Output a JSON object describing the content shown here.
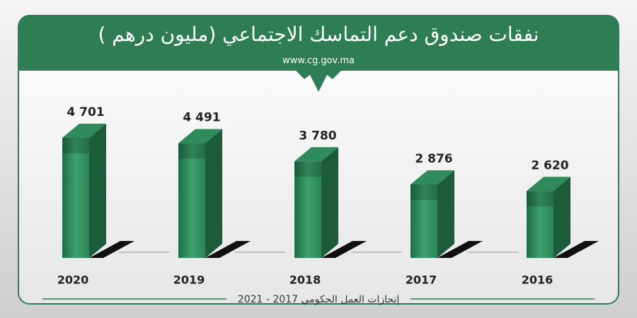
{
  "chart_data": {
    "type": "bar3d",
    "title": "نفقات صندوق دعم التماسك الاجتماعي (مليون درهم )",
    "subtitle": "www.cg.gov.ma",
    "footer": "إنجازات العمل الحكومي 2017 - 2021",
    "categories": [
      "2020",
      "2019",
      "2018",
      "2017",
      "2016"
    ],
    "values": [
      4701,
      4491,
      3780,
      2876,
      2620
    ],
    "value_labels": [
      "4 701",
      "4 491",
      "3 780",
      "2 876",
      "2 620"
    ],
    "color": "#2f8a5c"
  }
}
